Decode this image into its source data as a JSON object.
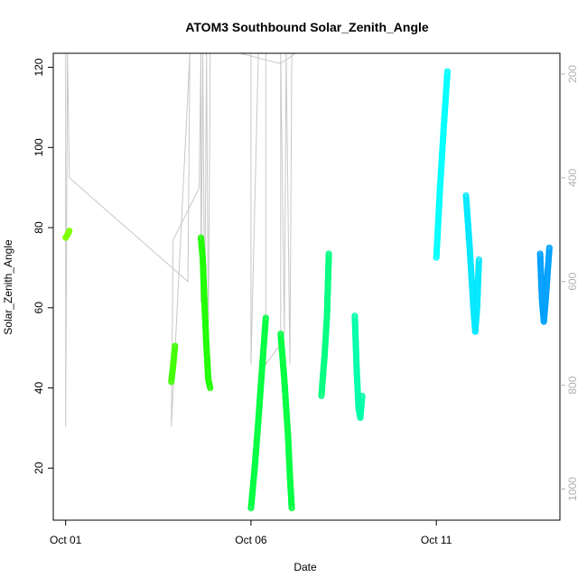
{
  "chart_data": {
    "type": "scatter",
    "title": "ATOM3 Southbound Solar_Zenith_Angle",
    "xlabel": "Date",
    "ylabel": "Solar_Zenith_Angle",
    "x_unit": "days",
    "xlim": [
      "2016-09-30T16:00",
      "2016-10-14T08:00"
    ],
    "ylim": [
      7,
      123.5
    ],
    "y2lim": [
      1060,
      160
    ],
    "x_ticks": [
      {
        "value": "2016-10-01T00:00",
        "label": "Oct 01"
      },
      {
        "value": "2016-10-06T00:00",
        "label": "Oct 06"
      },
      {
        "value": "2016-10-11T00:00",
        "label": "Oct 11"
      }
    ],
    "y_ticks": [
      20,
      40,
      60,
      80,
      100,
      120
    ],
    "y2_ticks": [
      200,
      400,
      600,
      800,
      1000
    ],
    "grid": false,
    "series": [
      {
        "color": "#7fff00",
        "segments": [
          [
            [
              "2016-10-01T00:00",
              77.5
            ],
            [
              "2016-10-01T01:12",
              78.2
            ],
            [
              "2016-10-01T02:24",
              79.2
            ]
          ]
        ]
      },
      {
        "color": "#40ff00",
        "segments": [
          [
            [
              "2016-10-03T20:24",
              41.5
            ],
            [
              "2016-10-03T21:36",
              45.5
            ],
            [
              "2016-10-03T22:48",
              50.5
            ]
          ]
        ]
      },
      {
        "color": "#1fff00",
        "segments": [
          [
            [
              "2016-10-04T15:36",
              77.5
            ],
            [
              "2016-10-04T16:48",
              72.0
            ],
            [
              "2016-10-04T18:00",
              60.0
            ],
            [
              "2016-10-04T19:12",
              50.0
            ],
            [
              "2016-10-04T20:24",
              42.0
            ],
            [
              "2016-10-04T21:36",
              40.0
            ]
          ]
        ]
      },
      {
        "color": "#00ff40",
        "segments": [
          [
            [
              "2016-10-06T00:00",
              10.0
            ],
            [
              "2016-10-06T02:24",
              20.0
            ],
            [
              "2016-10-06T04:48",
              32.0
            ],
            [
              "2016-10-06T07:12",
              45.0
            ],
            [
              "2016-10-06T09:36",
              57.5
            ]
          ],
          [
            [
              "2016-10-06T19:12",
              53.5
            ],
            [
              "2016-10-06T21:36",
              42.0
            ],
            [
              "2016-10-07T00:00",
              28.0
            ],
            [
              "2016-10-07T01:12",
              18.0
            ],
            [
              "2016-10-07T02:24",
              10.0
            ]
          ]
        ]
      },
      {
        "color": "#00ff80",
        "segments": [
          [
            [
              "2016-10-07T21:36",
              38.0
            ],
            [
              "2016-10-07T23:38",
              48.0
            ],
            [
              "2016-10-08T01:12",
              58.0
            ],
            [
              "2016-10-08T02:24",
              73.5
            ]
          ]
        ]
      },
      {
        "color": "#00ffa8",
        "segments": [
          [
            [
              "2016-10-08T19:12",
              58.0
            ],
            [
              "2016-10-08T20:24",
              45.0
            ],
            [
              "2016-10-08T21:36",
              35.0
            ],
            [
              "2016-10-08T22:48",
              32.5
            ],
            [
              "2016-10-09T00:00",
              38.0
            ]
          ]
        ]
      },
      {
        "color": "#00ffff",
        "segments": [
          [
            [
              "2016-10-10T24:00",
              72.5
            ],
            [
              "2016-10-11T02:24",
              90.0
            ],
            [
              "2016-10-11T04:48",
              105.0
            ],
            [
              "2016-10-11T07:12",
              119.0
            ]
          ]
        ]
      },
      {
        "color": "#00e8ff",
        "segments": [
          [
            [
              "2016-10-11T19:12",
              88.0
            ],
            [
              "2016-10-11T21:36",
              75.0
            ],
            [
              "2016-10-12T00:00",
              60.0
            ],
            [
              "2016-10-12T01:12",
              54.0
            ],
            [
              "2016-10-12T02:24",
              60.0
            ],
            [
              "2016-10-12T03:36",
              72.0
            ]
          ]
        ]
      },
      {
        "color": "#00a0ff",
        "segments": [
          [
            [
              "2016-10-13T19:12",
              73.5
            ],
            [
              "2016-10-13T20:24",
              62.0
            ],
            [
              "2016-10-13T21:36",
              56.5
            ],
            [
              "2016-10-13T22:48",
              62.0
            ],
            [
              "2016-10-14T01:12",
              75.0
            ]
          ]
        ]
      }
    ],
    "reference_series": {
      "axis": "right",
      "color": "#c8c8c8",
      "points": [
        [
          "2016-10-01T00:00",
          160
        ],
        [
          "2016-10-01T00:00",
          880
        ],
        [
          "2016-10-01T01:12",
          160
        ],
        [
          "2016-10-01T02:24",
          400
        ],
        [
          "2016-10-04T07:12",
          600
        ],
        [
          "2016-10-04T08:24",
          160
        ],
        [
          "2016-10-03T20:24",
          880
        ],
        [
          "2016-10-03T21:36",
          520
        ],
        [
          "2016-10-04T14:24",
          420
        ],
        [
          "2016-10-04T15:36",
          160
        ],
        [
          "2016-10-04T15:36",
          640
        ],
        [
          "2016-10-04T16:48",
          160
        ],
        [
          "2016-10-04T18:00",
          680
        ],
        [
          "2016-10-04T19:12",
          160
        ],
        [
          "2016-10-04T20:24",
          720
        ],
        [
          "2016-10-04T21:36",
          160
        ],
        [
          "2016-10-05T24:00",
          160
        ],
        [
          "2016-10-06T00:00",
          760
        ],
        [
          "2016-10-06T04:48",
          160
        ],
        [
          "2016-10-06T09:36",
          160
        ],
        [
          "2016-10-06T09:36",
          760
        ],
        [
          "2016-10-06T19:12",
          720
        ],
        [
          "2016-10-06T19:12",
          160
        ],
        [
          "2016-10-06T21:36",
          700
        ],
        [
          "2016-10-06T22:48",
          160
        ],
        [
          "2016-10-07T01:12",
          760
        ],
        [
          "2016-10-07T02:24",
          160
        ],
        [
          "2016-10-07T04:48",
          160
        ],
        [
          "2016-10-07T04:48",
          160
        ],
        [
          "2016-10-06T19:12",
          180
        ],
        [
          "2016-10-05T16:48",
          160
        ],
        [
          "2016-10-04T08:24",
          160
        ]
      ]
    }
  }
}
